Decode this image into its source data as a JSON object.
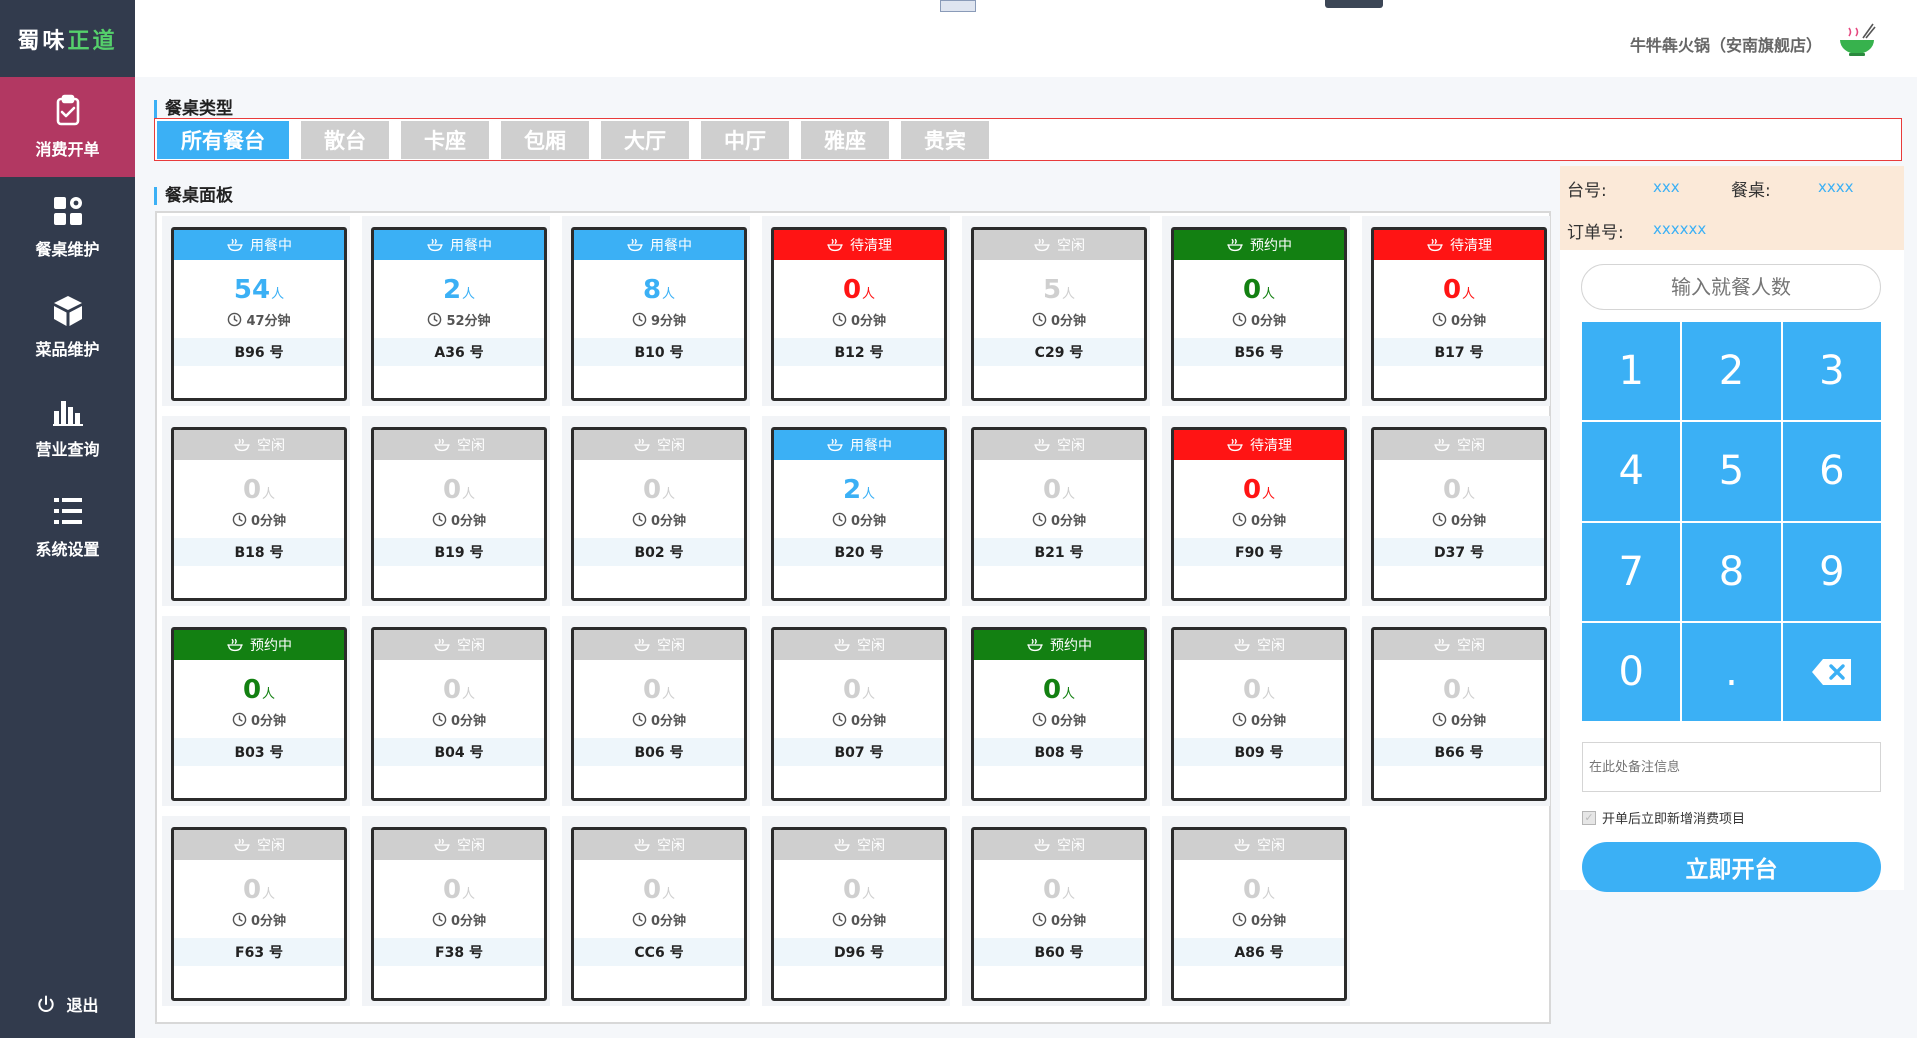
{
  "brand": {
    "part1": "蜀味",
    "part2": "正道"
  },
  "nav": [
    {
      "label": "消费开单",
      "icon": "clipboard-check-icon",
      "active": true
    },
    {
      "label": "餐桌维护",
      "icon": "grid-settings-icon",
      "active": false
    },
    {
      "label": "菜品维护",
      "icon": "cube-icon",
      "active": false
    },
    {
      "label": "营业查询",
      "icon": "bar-chart-icon",
      "active": false
    },
    {
      "label": "系统设置",
      "icon": "list-settings-icon",
      "active": false
    }
  ],
  "logout_label": "退出",
  "store_name": "牛牪犇火锅（安南旗舰店）",
  "section_type_title": "餐桌类型",
  "section_panel_title": "餐桌面板",
  "tabs": [
    "所有餐台",
    "散台",
    "卡座",
    "包厢",
    "大厅",
    "中厅",
    "雅座",
    "贵宾"
  ],
  "active_tab": 0,
  "status_colors": {
    "用餐中": "#3bb0f5",
    "待清理": "#ff1414",
    "空闲": "#cfcfcf",
    "预约中": "#138012"
  },
  "unit_person": "人",
  "tables": [
    {
      "status": "用餐中",
      "count": "54",
      "time": "47分钟",
      "id": "B96 号"
    },
    {
      "status": "用餐中",
      "count": "2",
      "time": "52分钟",
      "id": "A36 号"
    },
    {
      "status": "用餐中",
      "count": "8",
      "time": "9分钟",
      "id": "B10 号"
    },
    {
      "status": "待清理",
      "count": "0",
      "time": "0分钟",
      "id": "B12 号"
    },
    {
      "status": "空闲",
      "count": "5",
      "time": "0分钟",
      "id": "C29 号"
    },
    {
      "status": "预约中",
      "count": "0",
      "time": "0分钟",
      "id": "B56 号"
    },
    {
      "status": "待清理",
      "count": "0",
      "time": "0分钟",
      "id": "B17 号"
    },
    {
      "status": "空闲",
      "count": "0",
      "time": "0分钟",
      "id": "B18 号"
    },
    {
      "status": "空闲",
      "count": "0",
      "time": "0分钟",
      "id": "B19 号"
    },
    {
      "status": "空闲",
      "count": "0",
      "time": "0分钟",
      "id": "B02 号"
    },
    {
      "status": "用餐中",
      "count": "2",
      "time": "0分钟",
      "id": "B20 号"
    },
    {
      "status": "空闲",
      "count": "0",
      "time": "0分钟",
      "id": "B21 号"
    },
    {
      "status": "待清理",
      "count": "0",
      "time": "0分钟",
      "id": "F90 号"
    },
    {
      "status": "空闲",
      "count": "0",
      "time": "0分钟",
      "id": "D37 号"
    },
    {
      "status": "预约中",
      "count": "0",
      "time": "0分钟",
      "id": "B03 号"
    },
    {
      "status": "空闲",
      "count": "0",
      "time": "0分钟",
      "id": "B04 号"
    },
    {
      "status": "空闲",
      "count": "0",
      "time": "0分钟",
      "id": "B06 号"
    },
    {
      "status": "空闲",
      "count": "0",
      "time": "0分钟",
      "id": "B07 号"
    },
    {
      "status": "预约中",
      "count": "0",
      "time": "0分钟",
      "id": "B08 号"
    },
    {
      "status": "空闲",
      "count": "0",
      "time": "0分钟",
      "id": "B09 号"
    },
    {
      "status": "空闲",
      "count": "0",
      "time": "0分钟",
      "id": "B66 号"
    },
    {
      "status": "空闲",
      "count": "0",
      "time": "0分钟",
      "id": "F63 号"
    },
    {
      "status": "空闲",
      "count": "0",
      "time": "0分钟",
      "id": "F38 号"
    },
    {
      "status": "空闲",
      "count": "0",
      "time": "0分钟",
      "id": "CC6 号"
    },
    {
      "status": "空闲",
      "count": "0",
      "time": "0分钟",
      "id": "D96 号"
    },
    {
      "status": "空闲",
      "count": "0",
      "time": "0分钟",
      "id": "B60 号"
    },
    {
      "status": "空闲",
      "count": "0",
      "time": "0分钟",
      "id": "A86 号"
    }
  ],
  "info": {
    "table_no_label": "台号:",
    "table_no_value": "xxx",
    "table_label": "餐桌:",
    "table_value": "xxxx",
    "order_label": "订单号:",
    "order_value": "xxxxxx"
  },
  "guest_input_placeholder": "输入就餐人数",
  "keypad": [
    "1",
    "2",
    "3",
    "4",
    "5",
    "6",
    "7",
    "8",
    "9",
    "0",
    ".",
    "backspace"
  ],
  "note_placeholder": "在此处备注信息",
  "checkbox_label": "开单后立即新增消费项目",
  "checkbox_checked": true,
  "open_button_label": "立即开台"
}
